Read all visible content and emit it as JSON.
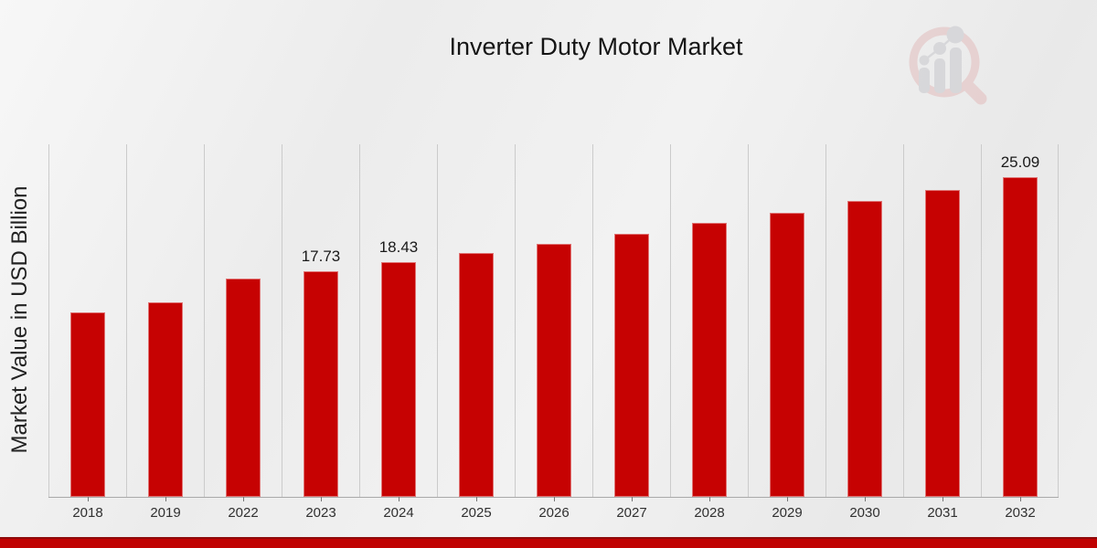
{
  "page": {
    "title": "Inverter Duty Motor Market",
    "y_axis_label": "Market Value in USD Billion"
  },
  "chart_data": {
    "type": "bar",
    "title": "Inverter Duty Motor Market",
    "xlabel": "",
    "ylabel": "Market Value in USD Billion",
    "categories": [
      "2018",
      "2019",
      "2022",
      "2023",
      "2024",
      "2025",
      "2026",
      "2027",
      "2028",
      "2029",
      "2030",
      "2031",
      "2032"
    ],
    "values": [
      14.48,
      15.27,
      17.13,
      17.73,
      18.43,
      19.15,
      19.91,
      20.7,
      21.5,
      22.35,
      23.22,
      24.14,
      25.09
    ],
    "value_labels": {
      "2023": "17.73",
      "2024": "18.43",
      "2032": "25.09"
    },
    "ylim": [
      0,
      27.7
    ],
    "grid": "vertical-only",
    "legend_position": "none",
    "bar_color": "#c60202"
  },
  "icons": {
    "watermark": "magnifier-bar-chart-logo"
  },
  "colors": {
    "bar": "#c60202",
    "gridline": "#cbcbcb",
    "axis_line": "#a9a9a9",
    "footer_band": "#c00202",
    "footer_band_edge": "#8f0a0a",
    "title_text": "#151515",
    "tick_text": "#303030",
    "watermark_ring": "#e2bcbc",
    "watermark_bars": "#c7c7cc"
  }
}
